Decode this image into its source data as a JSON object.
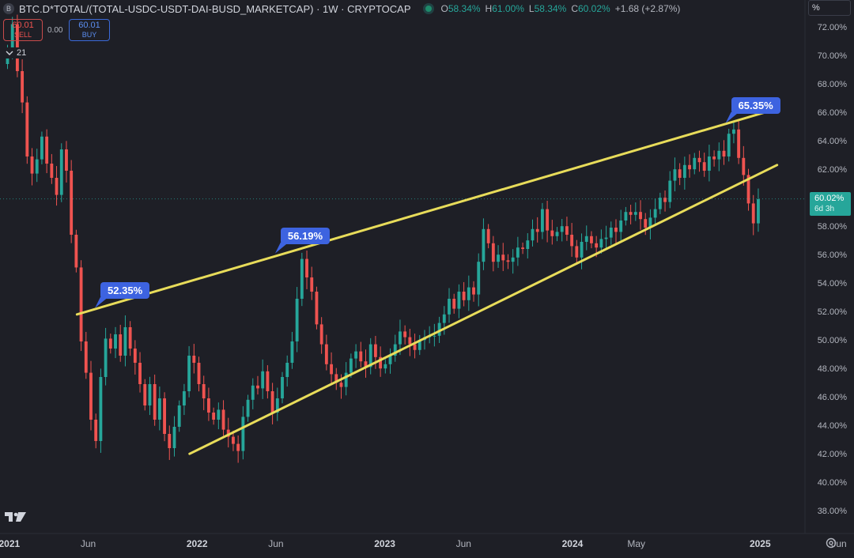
{
  "header": {
    "symbol_badge": "B",
    "title": "BTC.D*TOTAL/(TOTAL-USDC-USDT-DAI-BUSD_MARKETCAP) · 1W · CRYPTOCAP",
    "ohlc": {
      "o_label": "O",
      "o_value": "58.34%",
      "h_label": "H",
      "h_value": "61.00%",
      "l_label": "L",
      "l_value": "58.34%",
      "c_label": "C",
      "c_value": "60.02%",
      "change": "+1.68 (+2.87%)"
    }
  },
  "trade": {
    "sell_price": "60.01",
    "sell_label": "SELL",
    "spread": "0.00",
    "buy_price": "60.01",
    "buy_label": "BUY"
  },
  "indicator": {
    "collapse_icon": "chevron-down-icon",
    "count": "21"
  },
  "scale_mode": "%",
  "current_price": {
    "value": "60.02%",
    "countdown": "6d 3h"
  },
  "callouts": [
    "52.35%",
    "56.19%",
    "65.35%"
  ],
  "colors": {
    "up": "#26a69a",
    "down": "#ef5350",
    "trendline": "#e8dc5a",
    "callout": "#3d63e0",
    "background": "#1e1f26"
  },
  "chart_data": {
    "type": "candlestick",
    "interval": "1W",
    "unit": "%",
    "ylim": [
      37,
      73
    ],
    "y_ticks": [
      "72.00%",
      "70.00%",
      "68.00%",
      "66.00%",
      "64.00%",
      "62.00%",
      "60.00%",
      "58.00%",
      "56.00%",
      "54.00%",
      "52.00%",
      "50.00%",
      "48.00%",
      "46.00%",
      "44.00%",
      "42.00%",
      "40.00%",
      "38.00%"
    ],
    "x_ticks": [
      {
        "label": "2021",
        "bold": true
      },
      {
        "label": "Jun",
        "bold": false
      },
      {
        "label": "2022",
        "bold": true
      },
      {
        "label": "Jun",
        "bold": false
      },
      {
        "label": "2023",
        "bold": true
      },
      {
        "label": "Jun",
        "bold": false
      },
      {
        "label": "2024",
        "bold": true
      },
      {
        "label": "May",
        "bold": false
      },
      {
        "label": "2025",
        "bold": true
      },
      {
        "label": "Jun",
        "bold": false
      }
    ],
    "x_tick_times": [
      2021.0,
      2021.42,
      2022.0,
      2022.42,
      2023.0,
      2023.42,
      2024.0,
      2024.34,
      2025.0,
      2025.42
    ],
    "time_range": [
      2020.95,
      2025.5
    ],
    "closes": [
      70.5,
      72.3,
      69.0,
      66.8,
      63.0,
      61.8,
      62.8,
      64.4,
      62.5,
      61.5,
      60.3,
      63.5,
      62.0,
      57.5,
      55.2,
      50.0,
      47.8,
      44.5,
      43.0,
      47.5,
      50.2,
      49.5,
      50.5,
      49.0,
      51.0,
      49.5,
      48.5,
      47.0,
      45.5,
      47.0,
      44.5,
      46.0,
      43.5,
      42.5,
      44.0,
      45.5,
      46.5,
      49.0,
      48.5,
      47.0,
      46.0,
      45.0,
      44.5,
      45.2,
      43.8,
      43.3,
      42.8,
      42.3,
      44.7,
      45.9,
      46.9,
      46.7,
      47.9,
      46.5,
      45.0,
      46.0,
      47.5,
      48.5,
      50.0,
      53.0,
      55.8,
      54.5,
      53.5,
      51.2,
      49.8,
      48.4,
      47.7,
      47.1,
      46.8,
      47.8,
      48.8,
      49.3,
      48.6,
      48.2,
      49.8,
      48.9,
      48.1,
      48.4,
      49.0,
      49.8,
      50.7,
      50.3,
      49.8,
      49.4,
      50.1,
      50.3,
      50.4,
      50.4,
      51.3,
      51.9,
      53.0,
      52.3,
      53.5,
      52.9,
      53.8,
      53.3,
      55.6,
      57.9,
      56.9,
      55.6,
      56.1,
      55.7,
      55.6,
      55.9,
      56.6,
      56.5,
      57.1,
      57.9,
      57.7,
      59.3,
      57.8,
      57.4,
      57.7,
      58.1,
      57.5,
      56.7,
      55.9,
      57.0,
      57.4,
      56.9,
      56.6,
      57.2,
      57.3,
      58.0,
      57.7,
      58.5,
      59.1,
      58.9,
      59.1,
      58.6,
      58.0,
      58.7,
      59.3,
      60.1,
      59.8,
      61.3,
      62.1,
      61.5,
      62.4,
      62.1,
      62.9,
      62.6,
      62.0,
      63.0,
      62.8,
      63.4,
      63.0,
      64.6,
      64.9,
      62.9,
      61.7,
      59.7,
      58.3,
      60.0
    ],
    "annotations": [
      {
        "label": "52.35%",
        "time": 2021.46,
        "value": 52.35
      },
      {
        "label": "56.19%",
        "time": 2022.42,
        "value": 56.19
      },
      {
        "label": "65.35%",
        "time": 2024.82,
        "value": 65.35
      }
    ],
    "trendlines": [
      {
        "name": "upper",
        "from": {
          "time": 2021.36,
          "value": 51.9
        },
        "to": {
          "time": 2025.05,
          "value": 66.2
        }
      },
      {
        "name": "lower",
        "from": {
          "time": 2021.96,
          "value": 42.1
        },
        "to": {
          "time": 2025.09,
          "value": 62.4
        }
      }
    ],
    "last_price": 60.02
  }
}
